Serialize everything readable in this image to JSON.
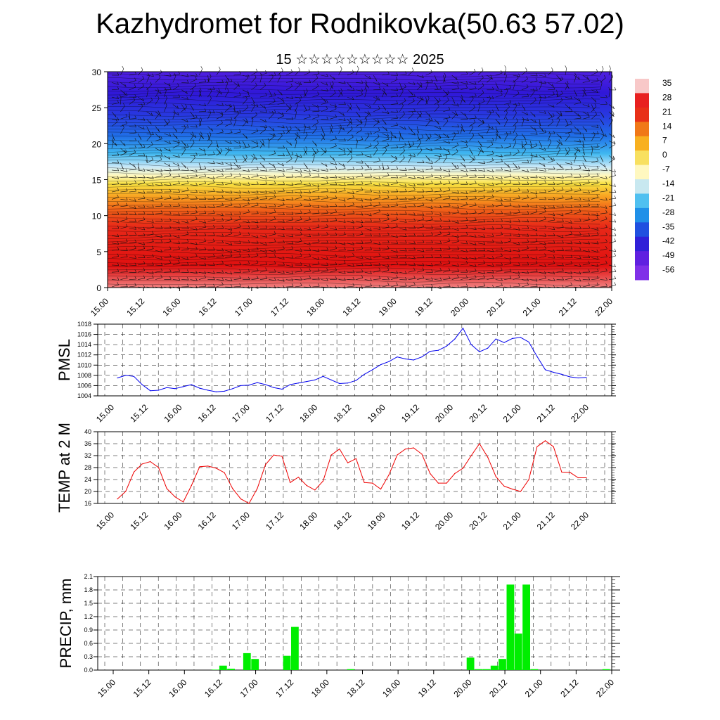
{
  "title": "Kazhydromet for Rodnikovka(50.63 57.02)",
  "subtitle": "15 ☆☆☆☆☆☆☆☆☆ 2025",
  "time_labels": [
    "15.00",
    "15.12",
    "16.00",
    "16.12",
    "17.00",
    "17.12",
    "18.00",
    "18.12",
    "19.00",
    "19.12",
    "20.00",
    "20.12",
    "21.00",
    "21.12",
    "22.00"
  ],
  "colorbar": {
    "labels": [
      "35",
      "28",
      "21",
      "14",
      "7",
      "0",
      "-7",
      "-14",
      "-21",
      "-28",
      "-35",
      "-42",
      "-49",
      "-56"
    ],
    "colors": [
      "#f8c8c8",
      "#e82020",
      "#e83018",
      "#f07818",
      "#f8b020",
      "#f8e060",
      "#fff8c0",
      "#c8e8f0",
      "#50c0f0",
      "#2090e8",
      "#2050e0",
      "#3020d8",
      "#6020e0",
      "#8030e8"
    ]
  },
  "chart_data": [
    {
      "type": "heatmap",
      "name": "cross-section",
      "ylim": [
        0,
        30
      ],
      "yticks": [
        0,
        5,
        10,
        15,
        20,
        25,
        30
      ],
      "xlabel": "",
      "ylabel": "",
      "vrange": [
        -60,
        38
      ]
    },
    {
      "type": "line",
      "ylabel": "PMSL",
      "ylim": [
        1004,
        1018
      ],
      "yticks": [
        1004,
        1006,
        1008,
        1010,
        1012,
        1014,
        1016,
        1018
      ],
      "x": [
        0,
        1,
        2,
        3,
        4,
        5,
        6,
        7,
        8,
        9,
        10,
        11,
        12,
        13,
        14,
        15,
        16,
        17,
        18,
        19,
        20,
        21,
        22,
        23,
        24,
        25,
        26,
        27,
        28,
        29,
        30,
        31,
        32,
        33,
        34,
        35,
        36,
        37,
        38,
        39,
        40,
        41,
        42,
        43,
        44,
        45,
        46,
        47,
        48,
        49,
        50,
        51,
        52,
        53,
        54,
        55,
        56,
        57
      ],
      "series": [
        {
          "color": "#0000ee",
          "values": [
            1007.5,
            1008,
            1007.8,
            1006.2,
            1005,
            1005.1,
            1005.6,
            1005.4,
            1005.8,
            1006.2,
            1005.5,
            1005.1,
            1004.8,
            1004.9,
            1005.4,
            1006,
            1006.1,
            1006.6,
            1006.2,
            1005.6,
            1005.3,
            1006.2,
            1006.5,
            1006.8,
            1007.1,
            1007.8,
            1007.1,
            1006.4,
            1006.5,
            1007,
            1008.2,
            1009.1,
            1010.1,
            1010.7,
            1011.6,
            1011.2,
            1011,
            1011.6,
            1012.7,
            1012.9,
            1013.7,
            1015.1,
            1017.2,
            1014,
            1012.6,
            1013.3,
            1015.1,
            1014.4,
            1015.2,
            1015.4,
            1014.5,
            1011.7,
            1009.1,
            1008.6,
            1008.2,
            1007.7,
            1007.5,
            1007.6
          ]
        }
      ]
    },
    {
      "type": "line",
      "ylabel": "TEMP at 2 M",
      "ylim": [
        16,
        40
      ],
      "yticks": [
        16,
        20,
        24,
        28,
        32,
        36,
        40
      ],
      "x": [
        0,
        1,
        2,
        3,
        4,
        5,
        6,
        7,
        8,
        9,
        10,
        11,
        12,
        13,
        14,
        15,
        16,
        17,
        18,
        19,
        20,
        21,
        22,
        23,
        24,
        25,
        26,
        27,
        28,
        29,
        30,
        31,
        32,
        33,
        34,
        35,
        36,
        37,
        38,
        39,
        40,
        41,
        42,
        43,
        44,
        45,
        46,
        47,
        48,
        49,
        50,
        51,
        52,
        53,
        54,
        55,
        56,
        57
      ],
      "series": [
        {
          "color": "#ee0000",
          "values": [
            17.5,
            20,
            26.5,
            29.2,
            30,
            28,
            21,
            18.2,
            16.5,
            22,
            28.3,
            28.5,
            27.8,
            26.3,
            21,
            17.5,
            16,
            21,
            29,
            32.2,
            31.8,
            23,
            24.8,
            22,
            20.5,
            23.5,
            32.2,
            34.2,
            29.6,
            31,
            23,
            22.8,
            20.8,
            25.6,
            32.2,
            34.2,
            34.6,
            32.5,
            26,
            22.8,
            22.8,
            26,
            27.8,
            32,
            36,
            31.5,
            25,
            21.8,
            20.8,
            20,
            24,
            35,
            37,
            35,
            26.5,
            26.4,
            24.6,
            24.6
          ]
        }
      ]
    },
    {
      "type": "bar",
      "ylabel": "PRECIP, mm",
      "ylim": [
        0,
        2.1
      ],
      "yticks": [
        "0.0",
        "0.3",
        "0.6",
        "0.9",
        "1.2",
        "1.5",
        "1.8",
        "2.1"
      ],
      "x": [
        0,
        1,
        2,
        3,
        4,
        5,
        6,
        7,
        8,
        9,
        10,
        11,
        12,
        13,
        14,
        15,
        16,
        17,
        18,
        19,
        20,
        21,
        22,
        23,
        24,
        25,
        26,
        27,
        28,
        29,
        30,
        31,
        32,
        33,
        34,
        35,
        36,
        37,
        38,
        39,
        40,
        41,
        42,
        43,
        44,
        45,
        46,
        47,
        48,
        49,
        50,
        51,
        52,
        53,
        54,
        55,
        56,
        57,
        58,
        59,
        60,
        61,
        62
      ],
      "series": [
        {
          "color": "#00ee00",
          "values": [
            0,
            0,
            0,
            0,
            0,
            0,
            0,
            0,
            0,
            0,
            0,
            0,
            0,
            0.01,
            0.1,
            0.03,
            0,
            0.38,
            0.25,
            0,
            0,
            0,
            0.32,
            0.97,
            0,
            0,
            0,
            0,
            0,
            0,
            0.02,
            0,
            0,
            0,
            0,
            0,
            0,
            0,
            0,
            0,
            0,
            0,
            0,
            0,
            0,
            0.28,
            0.02,
            0.02,
            0.1,
            0.25,
            1.92,
            0.82,
            1.92,
            0.02,
            0,
            0,
            0,
            0,
            0,
            0,
            0,
            0,
            0.02
          ]
        }
      ]
    }
  ]
}
